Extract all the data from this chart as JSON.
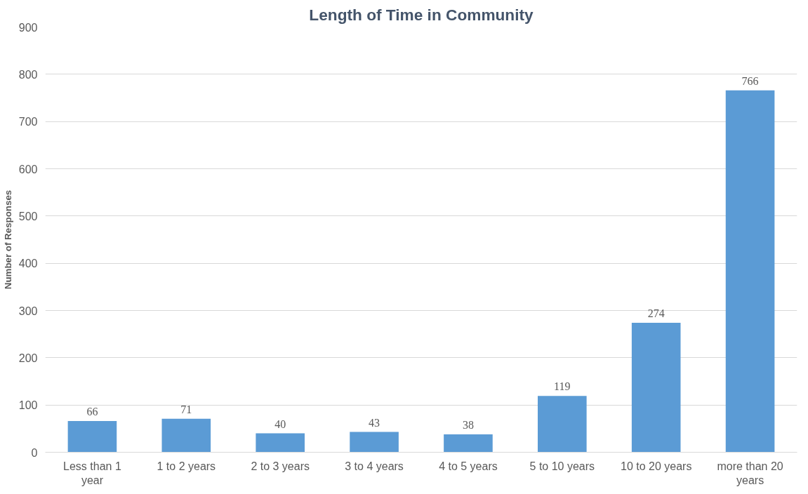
{
  "chart_data": {
    "type": "bar",
    "title": "Length of Time in Community",
    "ylabel": "Number of Responses",
    "categories": [
      "Less than 1 year",
      "1 to 2 years",
      "2 to 3 years",
      "3 to 4 years",
      "4 to 5 years",
      "5 to 10 years",
      "10 to 20 years",
      "more than 20 years"
    ],
    "values": [
      66,
      71,
      40,
      43,
      38,
      119,
      274,
      766
    ],
    "color": "#5b9bd5",
    "ylim": [
      0,
      900
    ],
    "yticks": [
      0,
      100,
      200,
      300,
      400,
      500,
      600,
      700,
      800,
      900
    ],
    "grid": "y",
    "data_labels": true
  }
}
